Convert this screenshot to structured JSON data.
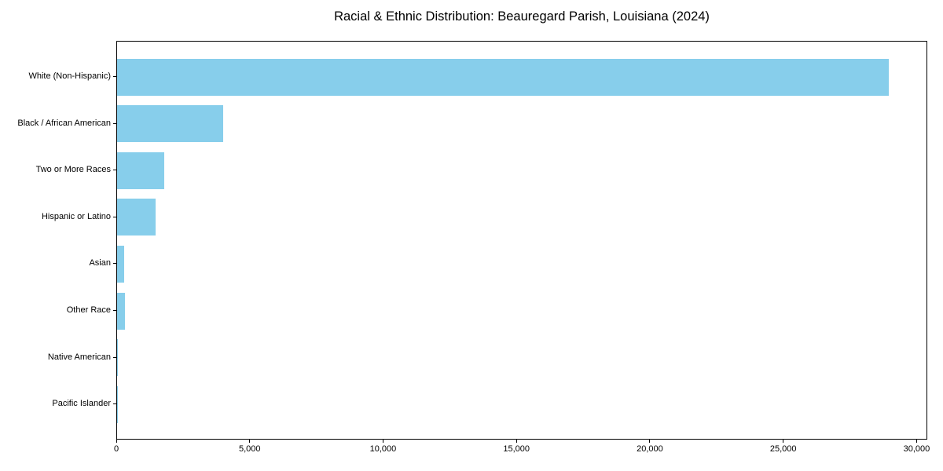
{
  "chart_data": {
    "type": "bar",
    "orientation": "horizontal",
    "title": "Racial & Ethnic Distribution: Beauregard Parish, Louisiana (2024)",
    "categories": [
      "White (Non-Hispanic)",
      "Black / African American",
      "Two or More Races",
      "Hispanic or Latino",
      "Asian",
      "Other Race",
      "Native American",
      "Pacific Islander"
    ],
    "values": [
      28940,
      3975,
      1770,
      1440,
      270,
      300,
      35,
      10
    ],
    "xlabel": "",
    "ylabel": "",
    "xlim": [
      0,
      30400
    ],
    "xticks": [
      0,
      5000,
      10000,
      15000,
      20000,
      25000,
      30000
    ],
    "xtick_labels": [
      "0",
      "5,000",
      "10,000",
      "15,000",
      "20,000",
      "25,000",
      "30,000"
    ],
    "bar_color": "#87CEEB",
    "axis_color": "#000000",
    "background": "#ffffff",
    "grid": false,
    "legend": null
  }
}
